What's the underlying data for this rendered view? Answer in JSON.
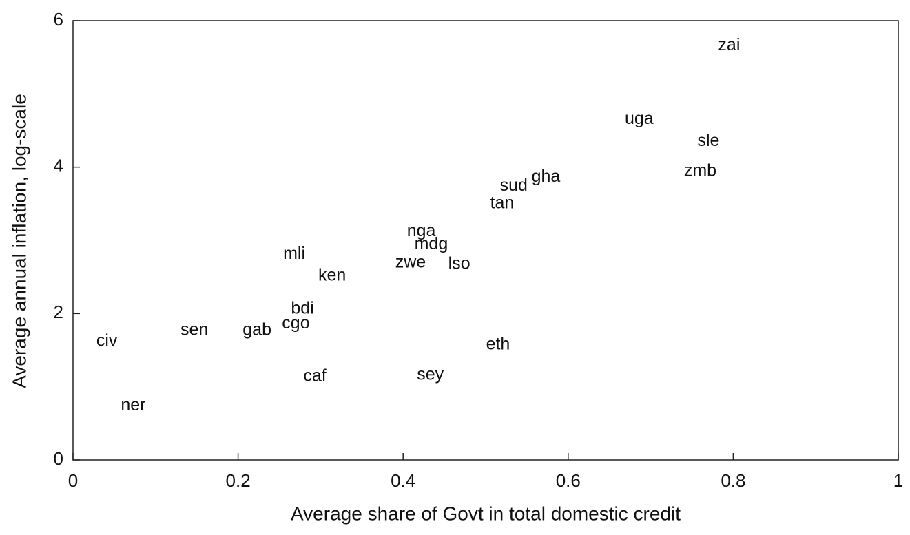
{
  "chart_data": {
    "type": "scatter",
    "xlabel": "Average share of Govt in total domestic credit",
    "ylabel": "Average annual inflation, log-scale",
    "labels": [
      "zai",
      "uga",
      "sle",
      "zmb",
      "gha",
      "sud",
      "tan",
      "nga",
      "mdg",
      "zwe",
      "lso",
      "mli",
      "ken",
      "bdi",
      "cgo",
      "gab",
      "sen",
      "civ",
      "eth",
      "caf",
      "sey",
      "ner"
    ],
    "x": [
      0.795,
      0.686,
      0.77,
      0.76,
      0.573,
      0.534,
      0.52,
      0.422,
      0.434,
      0.409,
      0.468,
      0.268,
      0.314,
      0.278,
      0.27,
      0.223,
      0.147,
      0.041,
      0.515,
      0.293,
      0.433,
      0.073
    ],
    "y": [
      5.66,
      4.65,
      4.35,
      3.94,
      3.86,
      3.74,
      3.5,
      3.12,
      2.94,
      2.69,
      2.67,
      2.81,
      2.51,
      2.06,
      1.86,
      1.77,
      1.77,
      1.62,
      1.57,
      1.14,
      1.16,
      0.74
    ],
    "color": "#111111",
    "xlim": [
      0,
      1
    ],
    "ylim": [
      0,
      6
    ],
    "xticks": [
      0,
      0.2,
      0.4,
      0.6,
      0.8,
      1
    ],
    "yticks": [
      0,
      2,
      4,
      6
    ]
  }
}
